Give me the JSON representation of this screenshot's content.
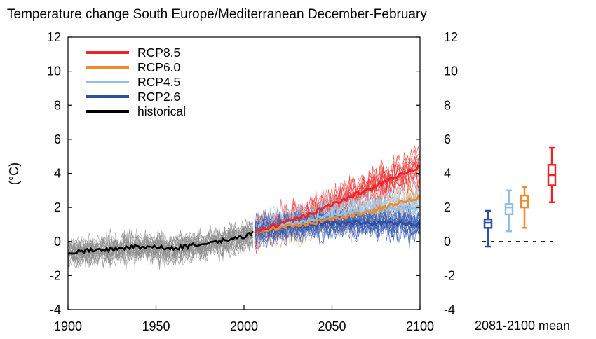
{
  "chart_data": {
    "type": "line",
    "title": "Temperature change South Europe/Mediterranean December-February",
    "ylabel": "(°C)",
    "xlabel": "",
    "x_range": [
      1900,
      2100
    ],
    "ylim": [
      -4,
      12
    ],
    "x_ticks": [
      "1900",
      "1950",
      "2000",
      "2050",
      "2100"
    ],
    "y_ticks": [
      "-4",
      "-2",
      "0",
      "2",
      "4",
      "6",
      "8",
      "10",
      "12"
    ],
    "grid": false,
    "legend_position": "top-left",
    "series": [
      {
        "name": "RCP8.5",
        "color": "#e8262a",
        "x": [
          2006,
          2020,
          2040,
          2060,
          2080,
          2100
        ],
        "values": [
          0.6,
          1.0,
          1.7,
          2.6,
          3.5,
          4.4
        ]
      },
      {
        "name": "RCP6.0",
        "color": "#f08a2e",
        "x": [
          2006,
          2020,
          2040,
          2060,
          2080,
          2100
        ],
        "values": [
          0.6,
          0.8,
          1.1,
          1.5,
          2.0,
          2.6
        ]
      },
      {
        "name": "RCP4.5",
        "color": "#8fbfe4",
        "x": [
          2006,
          2020,
          2040,
          2060,
          2080,
          2100
        ],
        "values": [
          0.6,
          0.9,
          1.3,
          1.7,
          1.9,
          2.0
        ]
      },
      {
        "name": "RCP2.6",
        "color": "#2e4fa0",
        "x": [
          2006,
          2020,
          2040,
          2060,
          2080,
          2100
        ],
        "values": [
          0.6,
          0.8,
          1.0,
          1.1,
          1.1,
          1.0
        ]
      },
      {
        "name": "historical",
        "color": "#000000",
        "x": [
          1900,
          1920,
          1940,
          1960,
          1980,
          2000,
          2005
        ],
        "values": [
          -0.6,
          -0.5,
          -0.3,
          -0.4,
          -0.1,
          0.3,
          0.5
        ]
      }
    ],
    "inset": {
      "label": "2081-2100 mean",
      "boxes": [
        {
          "scenario": "RCP2.6",
          "color": "#2e4fa0",
          "min": -0.3,
          "q1": 0.8,
          "median": 1.1,
          "q3": 1.3,
          "max": 1.8
        },
        {
          "scenario": "RCP4.5",
          "color": "#8fbfe4",
          "min": 0.6,
          "q1": 1.6,
          "median": 2.0,
          "q3": 2.2,
          "max": 3.0
        },
        {
          "scenario": "RCP6.0",
          "color": "#f08a2e",
          "min": 0.8,
          "q1": 2.0,
          "median": 2.4,
          "q3": 2.7,
          "max": 3.2
        },
        {
          "scenario": "RCP8.5",
          "color": "#e8262a",
          "min": 2.3,
          "q1": 3.3,
          "median": 3.9,
          "q3": 4.5,
          "max": 5.5
        }
      ]
    },
    "ensemble_colors": {
      "historical": "#8c8c8c",
      "RCP8.5": "#ee3b3b",
      "RCP6.0": "#f5a55c",
      "RCP4.5": "#9ec8ea",
      "RCP2.6": "#3b5db3"
    }
  }
}
